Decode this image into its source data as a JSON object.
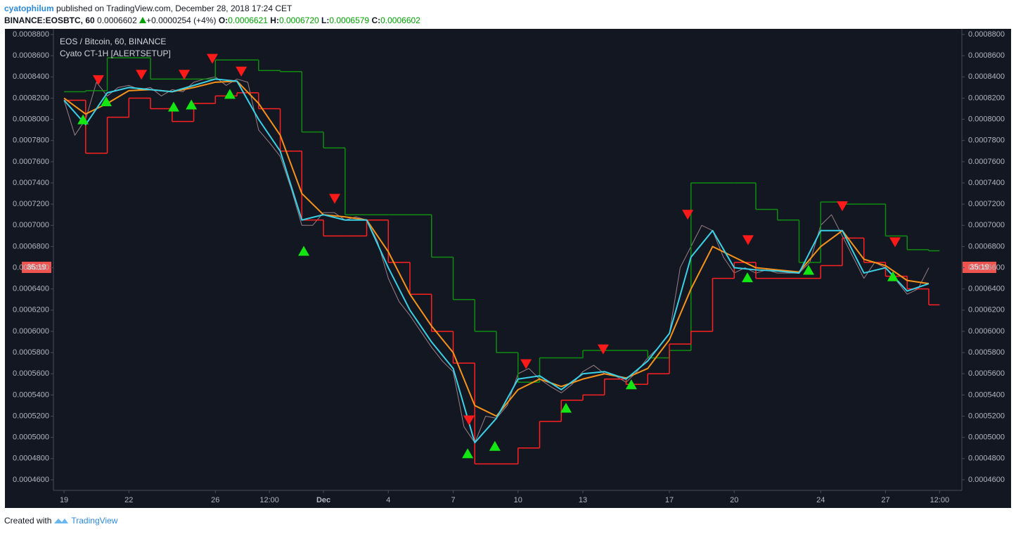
{
  "header": {
    "author": "cyatophilum",
    "published": "published on TradingView.com, December 28, 2018 17:24 CET",
    "symbol": "BINANCE:EOSBTC, 60",
    "last": "0.0006602",
    "change": "+0.0000254 (+4%)",
    "ohlc": [
      {
        "label": "O:",
        "value": "0.0006621"
      },
      {
        "label": "H:",
        "value": "0.0006720"
      },
      {
        "label": "L:",
        "value": "0.0006579"
      },
      {
        "label": "C:",
        "value": "0.0006602"
      }
    ]
  },
  "footer": {
    "created": "Created with",
    "brand": "TradingView"
  },
  "chart_data": {
    "type": "line",
    "title": "EOS / Bitcoin, 60, BINANCE",
    "subtitle": "Cyato CT-1H [ALERTSETUP]",
    "countdown": "35:19",
    "background": "#131722",
    "xlim": [
      18.51,
      60.53
    ],
    "ylim": [
      0.00045,
      0.000884
    ],
    "xticks": [
      19,
      22,
      26,
      {
        "value": 28.5,
        "label": "12:00"
      },
      {
        "value": 31,
        "label": "Dec"
      },
      {
        "value": 34,
        "label": "4"
      },
      {
        "value": 37,
        "label": "7"
      },
      {
        "value": 40,
        "label": "10"
      },
      {
        "value": 43,
        "label": "13"
      },
      {
        "value": 47,
        "label": "17"
      },
      {
        "value": 50,
        "label": "20"
      },
      {
        "value": 54,
        "label": "24"
      },
      {
        "value": 57,
        "label": "27"
      },
      {
        "value": 59.5,
        "label": "12:00"
      }
    ],
    "yticks": [
      {
        "value": 0.00046,
        "label": "0.0004600"
      },
      {
        "value": 0.00048,
        "label": "0.0004800"
      },
      {
        "value": 0.0005,
        "label": "0.0005000"
      },
      {
        "value": 0.00052,
        "label": "0.0005200"
      },
      {
        "value": 0.00054,
        "label": "0.0005400"
      },
      {
        "value": 0.00056,
        "label": "0.0005600"
      },
      {
        "value": 0.00058,
        "label": "0.0005800"
      },
      {
        "value": 0.0006,
        "label": "0.0006000"
      },
      {
        "value": 0.00062,
        "label": "0.0006200"
      },
      {
        "value": 0.00064,
        "label": "0.0006400"
      },
      {
        "value": 0.00066,
        "label": "0.0006600"
      },
      {
        "value": 0.00068,
        "label": "0.0006800"
      },
      {
        "value": 0.0007,
        "label": "0.0007000"
      },
      {
        "value": 0.00072,
        "label": "0.0007200"
      },
      {
        "value": 0.00074,
        "label": "0.0007400"
      },
      {
        "value": 0.00076,
        "label": "0.0007600"
      },
      {
        "value": 0.00078,
        "label": "0.0007800"
      },
      {
        "value": 0.0008,
        "label": "0.0008000"
      },
      {
        "value": 0.00082,
        "label": "0.0008200"
      },
      {
        "value": 0.00084,
        "label": "0.0008400"
      },
      {
        "value": 0.00086,
        "label": "0.0008600"
      },
      {
        "value": 0.00088,
        "label": "0.0008800"
      }
    ],
    "series": [
      {
        "color": "#9a7f86",
        "style": "line",
        "width": 1,
        "x": [
          19,
          19.5,
          20,
          20.5,
          21,
          21.5,
          22,
          22.5,
          23,
          23.5,
          24,
          24.5,
          25,
          25.5,
          26,
          26.5,
          27,
          27.5,
          28,
          28.5,
          29,
          29.5,
          30,
          30.5,
          31,
          31.5,
          32,
          32.5,
          33,
          33.5,
          34,
          34.5,
          35,
          35.5,
          36,
          36.5,
          37,
          37.5,
          38,
          38.5,
          39,
          39.5,
          40,
          40.5,
          41,
          41.5,
          42,
          42.5,
          43,
          43.5,
          44,
          44.5,
          45,
          45.5,
          46,
          46.5,
          47,
          47.5,
          48,
          48.5,
          49,
          49.5,
          50,
          50.5,
          51,
          51.5,
          52,
          52.5,
          53,
          53.5,
          54,
          54.5,
          55,
          55.5,
          56,
          56.5,
          57,
          57.5,
          58,
          58.5,
          59
        ],
        "values": [
          0.000818,
          0.000785,
          0.0008,
          0.000835,
          0.000822,
          0.00083,
          0.000832,
          0.000828,
          0.00083,
          0.000822,
          0.000828,
          0.000826,
          0.000835,
          0.000838,
          0.00084,
          0.000832,
          0.000838,
          0.000835,
          0.00079,
          0.000778,
          0.000765,
          0.000735,
          0.0007,
          0.0007,
          0.000712,
          0.000712,
          0.000705,
          0.000708,
          0.000705,
          0.000685,
          0.00065,
          0.000628,
          0.000615,
          0.0006,
          0.000585,
          0.000572,
          0.000562,
          0.00051,
          0.000495,
          0.00052,
          0.000518,
          0.00053,
          0.00056,
          0.000565,
          0.000555,
          0.000548,
          0.000542,
          0.00055,
          0.000562,
          0.000568,
          0.00056,
          0.000558,
          0.000552,
          0.000562,
          0.000575,
          0.000585,
          0.000598,
          0.00066,
          0.00068,
          0.0007,
          0.000695,
          0.00067,
          0.000655,
          0.00066,
          0.000655,
          0.000658,
          0.000655,
          0.000655,
          0.000655,
          0.000665,
          0.0007,
          0.00071,
          0.00069,
          0.00067,
          0.00065,
          0.000665,
          0.00066,
          0.000648,
          0.000635,
          0.00064,
          0.00066
        ]
      },
      {
        "color": "#108c10",
        "style": "step",
        "width": 1.5,
        "x": [
          19,
          20,
          21,
          22,
          23,
          24,
          25,
          26,
          27,
          28,
          29,
          30,
          31,
          32,
          33,
          34,
          35,
          36,
          37,
          38,
          39,
          40,
          41,
          42,
          43,
          44,
          45,
          46,
          47,
          48,
          49,
          50,
          51,
          52,
          53,
          54,
          55,
          56,
          57,
          58,
          59
        ],
        "values": [
          0.000826,
          0.000827,
          0.000858,
          0.000858,
          0.000838,
          0.000838,
          0.000838,
          0.000856,
          0.000856,
          0.000846,
          0.000845,
          0.000788,
          0.000773,
          0.00071,
          0.00071,
          0.00071,
          0.00071,
          0.00067,
          0.00063,
          0.0006,
          0.00058,
          0.000552,
          0.000575,
          0.000575,
          0.000582,
          0.000582,
          0.000582,
          0.000575,
          0.000582,
          0.00074,
          0.00074,
          0.00074,
          0.000715,
          0.000705,
          0.000665,
          0.000722,
          0.00072,
          0.00072,
          0.00069,
          0.000677,
          0.000676
        ]
      },
      {
        "color": "#ff2020",
        "style": "step",
        "width": 1.5,
        "x": [
          19,
          20,
          21,
          22,
          23,
          24,
          25,
          26,
          27,
          28,
          29,
          30,
          31,
          32,
          33,
          34,
          35,
          36,
          37,
          38,
          39,
          40,
          41,
          42,
          43,
          44,
          45,
          46,
          47,
          48,
          49,
          50,
          51,
          52,
          53,
          54,
          55,
          56,
          57,
          58,
          59
        ],
        "values": [
          0.000818,
          0.000768,
          0.000802,
          0.00082,
          0.00081,
          0.000798,
          0.000815,
          0.000822,
          0.000825,
          0.00081,
          0.00077,
          0.000705,
          0.00069,
          0.00069,
          0.000705,
          0.000665,
          0.000635,
          0.0006,
          0.00057,
          0.000475,
          0.000475,
          0.00049,
          0.000515,
          0.000535,
          0.00054,
          0.000555,
          0.00055,
          0.00056,
          0.000588,
          0.0006,
          0.00065,
          0.000665,
          0.00065,
          0.00065,
          0.00065,
          0.000662,
          0.000688,
          0.000665,
          0.000652,
          0.00064,
          0.000625
        ]
      },
      {
        "color": "#f7931a",
        "style": "line",
        "width": 2,
        "x": [
          19,
          20,
          21,
          22,
          23,
          24,
          25,
          26,
          27,
          28,
          29,
          30,
          31,
          32,
          33,
          34,
          35,
          36,
          37,
          38,
          39,
          40,
          41,
          42,
          43,
          44,
          45,
          46,
          47,
          48,
          49,
          50,
          51,
          52,
          53,
          54,
          55,
          56,
          57,
          58,
          59
        ],
        "values": [
          0.00082,
          0.000805,
          0.000815,
          0.000827,
          0.000828,
          0.000826,
          0.00083,
          0.000835,
          0.000836,
          0.000815,
          0.000785,
          0.00073,
          0.00071,
          0.000708,
          0.000705,
          0.000675,
          0.000635,
          0.000605,
          0.00058,
          0.00053,
          0.00052,
          0.000545,
          0.000555,
          0.000548,
          0.000555,
          0.00056,
          0.000556,
          0.000565,
          0.000592,
          0.00064,
          0.00068,
          0.00067,
          0.00066,
          0.000658,
          0.000656,
          0.00068,
          0.000695,
          0.000668,
          0.000662,
          0.000648,
          0.000645
        ]
      },
      {
        "color": "#3ad1e6",
        "style": "line",
        "width": 2,
        "x": [
          19,
          20,
          21,
          22,
          23,
          24,
          25,
          26,
          27,
          28,
          29,
          30,
          31,
          32,
          33,
          34,
          35,
          36,
          37,
          38,
          39,
          40,
          41,
          42,
          43,
          44,
          45,
          46,
          47,
          48,
          49,
          50,
          51,
          52,
          53,
          54,
          55,
          56,
          57,
          58,
          59
        ],
        "values": [
          0.000818,
          0.000795,
          0.000825,
          0.00083,
          0.000828,
          0.000826,
          0.000832,
          0.000838,
          0.000836,
          0.0008,
          0.00077,
          0.000705,
          0.00071,
          0.000705,
          0.000705,
          0.00066,
          0.00062,
          0.00059,
          0.000565,
          0.000495,
          0.000518,
          0.000555,
          0.000558,
          0.000545,
          0.00056,
          0.000562,
          0.000555,
          0.000572,
          0.000598,
          0.00067,
          0.000695,
          0.00066,
          0.000658,
          0.000657,
          0.000655,
          0.000695,
          0.000695,
          0.000655,
          0.00066,
          0.000638,
          0.000645
        ]
      }
    ],
    "markers": [
      {
        "shape": "triangle-up",
        "color": "#14e614",
        "x": [
          19.88,
          20.95,
          24.07,
          24.89,
          26.67,
          30.09,
          37.67,
          38.93,
          42.22,
          45.24,
          50.61,
          53.44,
          57.34
        ],
        "values": [
          0.0008,
          0.000817,
          0.000812,
          0.000814,
          0.000824,
          0.000676,
          0.000485,
          0.000492,
          0.000528,
          0.00055,
          0.000651,
          0.000658,
          0.000652
        ]
      },
      {
        "shape": "triangle-down",
        "color": "#ff1a1a",
        "x": [
          20.59,
          22.58,
          24.56,
          25.86,
          27.2,
          31.52,
          37.73,
          40.37,
          43.94,
          47.85,
          50.64,
          55.0,
          57.44
        ],
        "values": [
          0.000837,
          0.000842,
          0.000842,
          0.000857,
          0.000845,
          0.000725,
          0.000516,
          0.000569,
          0.000583,
          0.00071,
          0.000686,
          0.000718,
          0.000684
        ]
      }
    ]
  }
}
